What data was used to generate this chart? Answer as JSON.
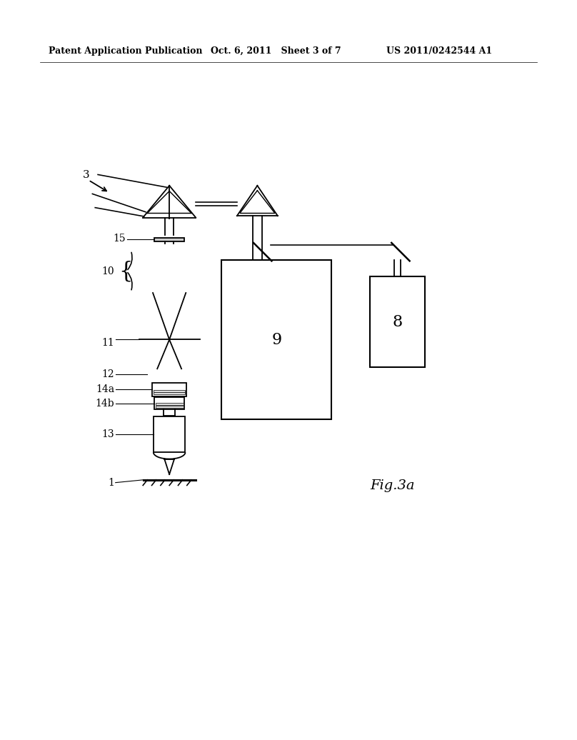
{
  "background_color": "#ffffff",
  "header_left": "Patent Application Publication",
  "header_mid": "Oct. 6, 2011   Sheet 3 of 7",
  "header_right": "US 2011/0242544 A1",
  "fig_label": "Fig.3a",
  "line_color": "#000000",
  "lw": 1.3
}
